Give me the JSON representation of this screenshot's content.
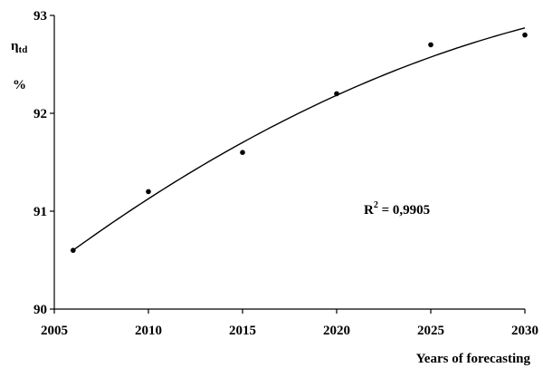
{
  "chart_data": {
    "type": "scatter",
    "x": [
      2006,
      2010,
      2015,
      2020,
      2025,
      2030
    ],
    "y": [
      90.6,
      91.2,
      91.6,
      92.2,
      92.7,
      92.8
    ],
    "trendline": {
      "type": "polynomial",
      "x": [
        2006,
        2010,
        2015,
        2020,
        2025,
        2030
      ],
      "y": [
        90.6,
        91.13,
        91.7,
        92.18,
        92.58,
        92.87
      ]
    },
    "xlim": [
      2005,
      2030
    ],
    "ylim": [
      90,
      93
    ],
    "xticks": [
      "2005",
      "2010",
      "2015",
      "2020",
      "2025",
      "2030"
    ],
    "yticks": [
      "90",
      "91",
      "92",
      "93"
    ],
    "ylabel_symbol": "η",
    "ylabel_sub": "td",
    "ylabel_unit": "%",
    "xlabel": "Years of forecasting",
    "annotation_prefix": "R",
    "annotation_exp": "2",
    "annotation_value": " = 0,9905",
    "grid": false,
    "legend": "none"
  }
}
